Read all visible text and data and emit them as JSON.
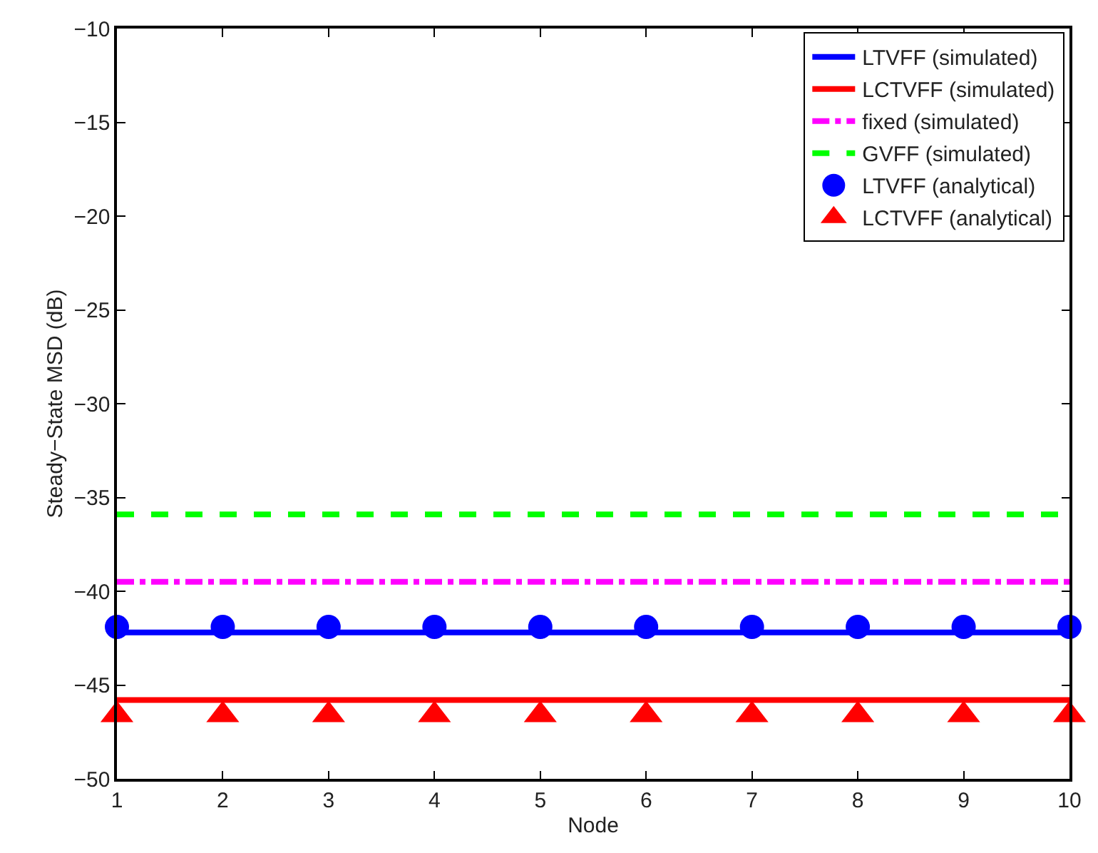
{
  "chart_data": {
    "type": "line",
    "xlabel": "Node",
    "ylabel": "Steady−State MSD (dB)",
    "x": [
      1,
      2,
      3,
      4,
      5,
      6,
      7,
      8,
      9,
      10
    ],
    "series": [
      {
        "name": "LTVFF (simulated)",
        "color": "#0000ff",
        "values": [
          -42.2,
          -42.2,
          -42.2,
          -42.2,
          -42.2,
          -42.2,
          -42.2,
          -42.2,
          -42.2,
          -42.2
        ],
        "line_style": "solid",
        "marker": "none"
      },
      {
        "name": "LCTVFF (simulated)",
        "color": "#ff0000",
        "values": [
          -45.8,
          -45.8,
          -45.8,
          -45.8,
          -45.8,
          -45.8,
          -45.8,
          -45.8,
          -45.8,
          -45.8
        ],
        "line_style": "solid",
        "marker": "none"
      },
      {
        "name": "fixed (simulated)",
        "color": "#ff00ff",
        "values": [
          -39.5,
          -39.5,
          -39.5,
          -39.5,
          -39.5,
          -39.5,
          -39.5,
          -39.5,
          -39.5,
          -39.5
        ],
        "line_style": "dashdot",
        "marker": "none"
      },
      {
        "name": "GVFF (simulated)",
        "color": "#00ff00",
        "values": [
          -35.9,
          -35.9,
          -35.9,
          -35.9,
          -35.9,
          -35.9,
          -35.9,
          -35.9,
          -35.9,
          -35.9
        ],
        "line_style": "dashed",
        "marker": "none"
      },
      {
        "name": "LTVFF (analytical)",
        "type": "scatter",
        "color": "#0000ff",
        "values": [
          -41.9,
          -41.9,
          -41.9,
          -41.9,
          -41.9,
          -41.9,
          -41.9,
          -41.9,
          -41.9,
          -41.9
        ],
        "marker": "circle"
      },
      {
        "name": "LCTVFF (analytical)",
        "type": "scatter",
        "color": "#ff0000",
        "values": [
          -46.6,
          -46.6,
          -46.6,
          -46.6,
          -46.6,
          -46.6,
          -46.6,
          -46.6,
          -46.6,
          -46.6
        ],
        "marker": "triangle"
      }
    ],
    "xlim": [
      1,
      10
    ],
    "xticks": [
      1,
      2,
      3,
      4,
      5,
      6,
      7,
      8,
      9,
      10
    ],
    "ylim": [
      -50,
      -10
    ],
    "yticks": [
      -50,
      -45,
      -40,
      -35,
      -30,
      -25,
      -20,
      -15,
      -10
    ],
    "grid": false,
    "legend": "top right"
  }
}
